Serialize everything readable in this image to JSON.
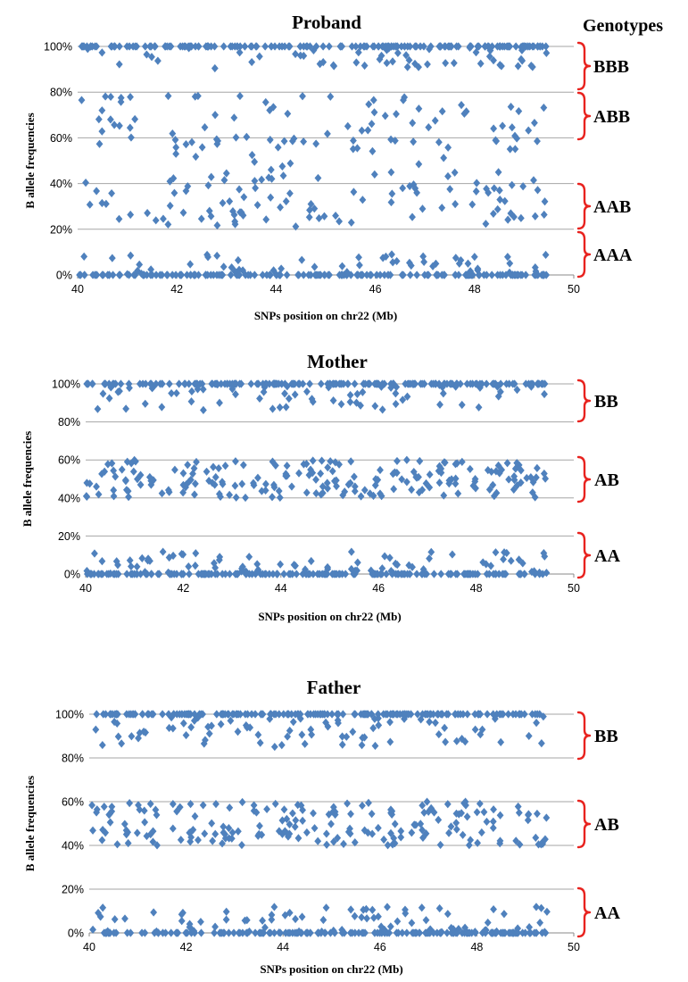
{
  "colors": {
    "points": "#4f81bd",
    "brace": "#e8231f",
    "grid": "#a6a6a6"
  },
  "genotypes_header": "Genotypes",
  "chart_data": [
    {
      "type": "scatter",
      "title": "Proband",
      "xlabel": "SNPs position  on chr22  (Mb)",
      "ylabel": "B allele frequencies",
      "xlim": [
        40,
        50
      ],
      "ylim": [
        0,
        1
      ],
      "x_ticks": [
        "40",
        "42",
        "44",
        "46",
        "48",
        "50"
      ],
      "y_ticks": [
        "0%",
        "20%",
        "40%",
        "60%",
        "80%",
        "100%"
      ],
      "grid": true,
      "marker": "diamond",
      "genotype_bands": [
        {
          "label": "BBB",
          "range": [
            0.8,
            1.0
          ]
        },
        {
          "label": "ABB",
          "range": [
            0.6,
            0.8
          ]
        },
        {
          "label": "AAB",
          "range": [
            0.2,
            0.4
          ]
        },
        {
          "label": "AAA",
          "range": [
            0.0,
            0.2
          ]
        }
      ],
      "clusters": [
        {
          "center": 1.0,
          "spread": 0.0,
          "count": 170
        },
        {
          "center": 0.95,
          "spread": 0.05,
          "count": 55
        },
        {
          "center": 0.67,
          "spread": 0.12,
          "count": 90
        },
        {
          "center": 0.33,
          "spread": 0.12,
          "count": 95
        },
        {
          "center": 0.45,
          "spread": 0.1,
          "count": 18
        },
        {
          "center": 0.0,
          "spread": 0.0,
          "count": 160
        },
        {
          "center": 0.04,
          "spread": 0.05,
          "count": 60
        }
      ]
    },
    {
      "type": "scatter",
      "title": "Mother",
      "xlabel": "SNPs position  on chr22  (Mb)",
      "ylabel": "B allele frequencies",
      "xlim": [
        40,
        50
      ],
      "ylim": [
        0,
        1
      ],
      "x_ticks": [
        "40",
        "42",
        "44",
        "46",
        "48",
        "50"
      ],
      "y_ticks": [
        "0%",
        "20%",
        "40%",
        "60%",
        "80%",
        "100%"
      ],
      "grid": true,
      "marker": "diamond",
      "genotype_bands": [
        {
          "label": "BB",
          "range": [
            0.8,
            1.0
          ]
        },
        {
          "label": "AB",
          "range": [
            0.38,
            0.62
          ]
        },
        {
          "label": "AA",
          "range": [
            0.0,
            0.2
          ]
        }
      ],
      "clusters": [
        {
          "center": 1.0,
          "spread": 0.0,
          "count": 170
        },
        {
          "center": 0.93,
          "spread": 0.07,
          "count": 70
        },
        {
          "center": 0.5,
          "spread": 0.1,
          "count": 200
        },
        {
          "center": 0.0,
          "spread": 0.0,
          "count": 150
        },
        {
          "center": 0.05,
          "spread": 0.07,
          "count": 90
        }
      ]
    },
    {
      "type": "scatter",
      "title": "Father",
      "xlabel": "SNPs position  on chr22  (Mb)",
      "ylabel": "B allele frequencies",
      "xlim": [
        40,
        50
      ],
      "ylim": [
        0,
        1
      ],
      "x_ticks": [
        "40",
        "42",
        "44",
        "46",
        "48",
        "50"
      ],
      "y_ticks": [
        "0%",
        "20%",
        "40%",
        "60%",
        "80%",
        "100%"
      ],
      "grid": true,
      "marker": "diamond",
      "genotype_bands": [
        {
          "label": "BB",
          "range": [
            0.8,
            1.0
          ]
        },
        {
          "label": "AB",
          "range": [
            0.38,
            0.62
          ]
        },
        {
          "label": "AA",
          "range": [
            0.0,
            0.2
          ]
        }
      ],
      "clusters": [
        {
          "center": 1.0,
          "spread": 0.0,
          "count": 170
        },
        {
          "center": 0.92,
          "spread": 0.07,
          "count": 80
        },
        {
          "center": 0.5,
          "spread": 0.1,
          "count": 190
        },
        {
          "center": 0.0,
          "spread": 0.0,
          "count": 150
        },
        {
          "center": 0.05,
          "spread": 0.07,
          "count": 90
        }
      ]
    }
  ]
}
